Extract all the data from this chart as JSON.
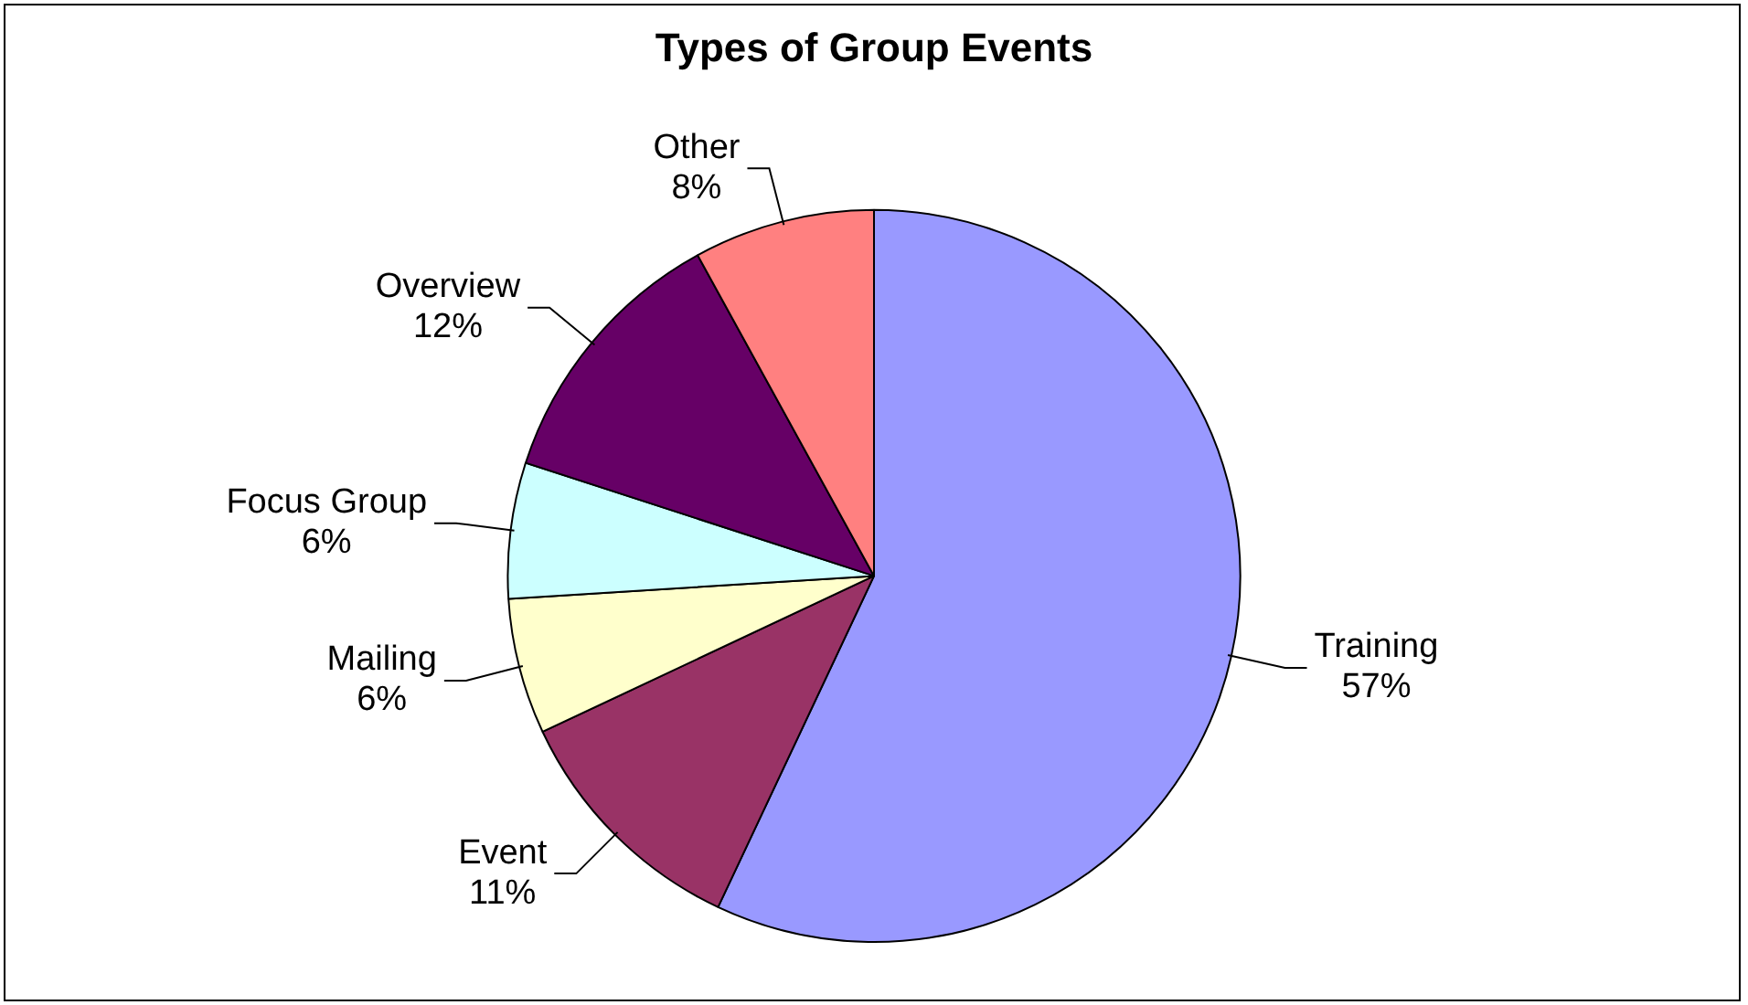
{
  "chart_data": {
    "type": "pie",
    "title": "Types of Group Events",
    "categories": [
      "Training",
      "Event",
      "Mailing",
      "Focus Group",
      "Overview",
      "Other"
    ],
    "values": [
      57,
      11,
      6,
      6,
      12,
      8
    ],
    "value_labels": [
      "57%",
      "11%",
      "6%",
      "6%",
      "12%",
      "8%"
    ],
    "colors": [
      "#9999ff",
      "#993366",
      "#ffffcc",
      "#ccffff",
      "#660066",
      "#ff8080"
    ],
    "legend": false
  }
}
